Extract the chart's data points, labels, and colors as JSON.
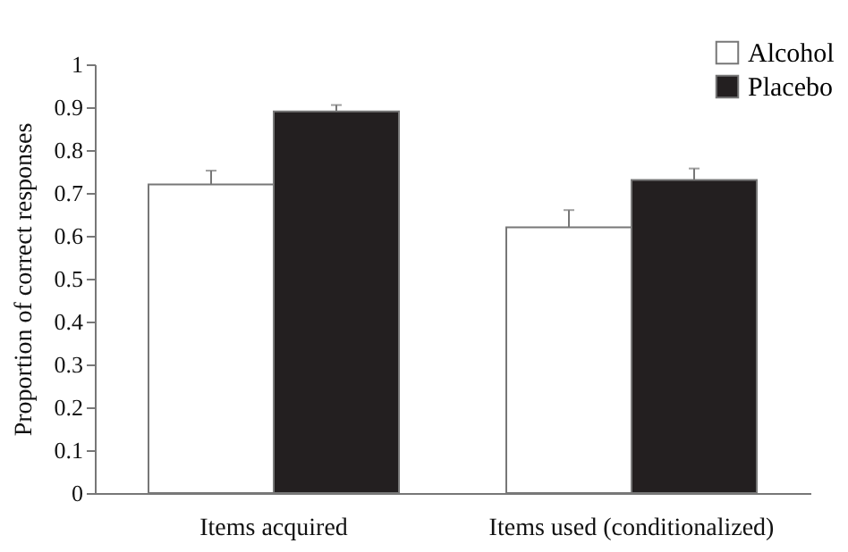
{
  "chart_data": {
    "type": "bar",
    "ylabel": "Proportion of correct responses",
    "categories": [
      "Items acquired",
      "Items used (conditionalized)"
    ],
    "series": [
      {
        "name": "Alcohol",
        "color": "#ffffff",
        "values": [
          0.72,
          0.62
        ],
        "errors": [
          [
            0.72,
            0.752
          ],
          [
            0.62,
            0.66
          ]
        ]
      },
      {
        "name": "Placebo",
        "color": "#231f20",
        "values": [
          0.89,
          0.73
        ],
        "errors": [
          [
            0.89,
            0.905
          ],
          [
            0.73,
            0.757
          ]
        ]
      }
    ],
    "ylim": [
      0,
      1
    ],
    "yticks": [
      0,
      0.1,
      0.2,
      0.3,
      0.4,
      0.5,
      0.6,
      0.7,
      0.8,
      0.9,
      1
    ],
    "grid": false,
    "legend": "top right"
  }
}
